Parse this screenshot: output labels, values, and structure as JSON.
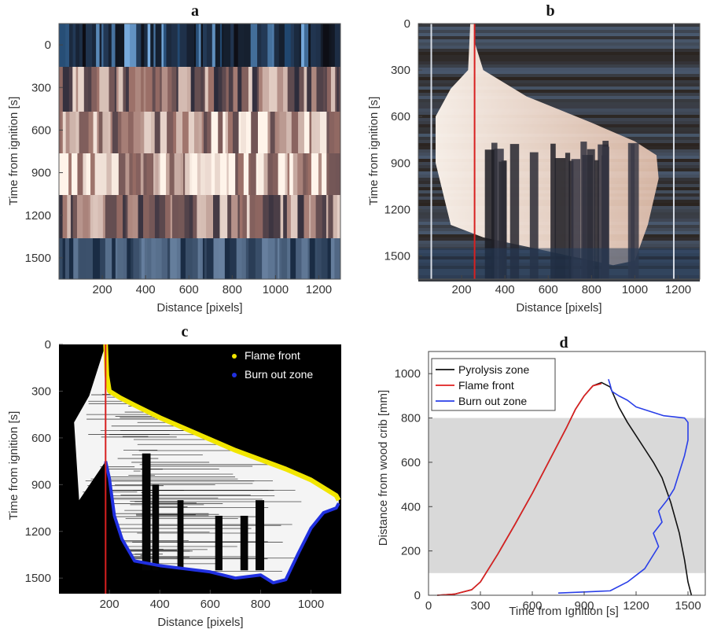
{
  "chart_data": [
    {
      "panel": "a",
      "type": "heatmap",
      "xlabel": "Distance [pixels]",
      "ylabel": "Time from ignition [s]",
      "xlim": [
        0,
        1300
      ],
      "ylim": [
        1650,
        -150
      ],
      "xticks": [
        200,
        400,
        600,
        800,
        1000,
        1200
      ],
      "yticks": [
        0,
        300,
        600,
        900,
        1200,
        1500
      ],
      "colors": {
        "low": "#3a6fa0",
        "mid": "#8a6a6a",
        "high": "#fff4ea"
      },
      "grid": false
    },
    {
      "panel": "b",
      "type": "heatmap",
      "xlabel": "Distance [pixels]",
      "ylabel": "Time from ignition [s]",
      "xlim": [
        0,
        1300
      ],
      "ylim": [
        1650,
        0
      ],
      "xticks": [
        200,
        400,
        600,
        800,
        1000,
        1200
      ],
      "yticks": [
        0,
        300,
        600,
        900,
        1200,
        1500
      ],
      "marker_line_x": 260,
      "marker_color": "#d82020",
      "grid": false
    },
    {
      "panel": "c",
      "type": "heatmap",
      "xlabel": "Distance [pixels]",
      "ylabel": "Time from ignition [s]",
      "xlim": [
        0,
        1120
      ],
      "ylim": [
        1600,
        0
      ],
      "xticks": [
        "200",
        "400",
        "600",
        "800",
        "1000"
      ],
      "yticks": [
        0,
        300,
        600,
        900,
        1200,
        1500
      ],
      "marker_line_x": 185,
      "marker_color": "#d82020",
      "legend_position": "top-right",
      "series": [
        {
          "name": "Flame front",
          "color": "#f2e600",
          "x": [
            185,
            190,
            200,
            240,
            300,
            400,
            500,
            600,
            700,
            800,
            900,
            1000,
            1060,
            1100,
            1110
          ],
          "y": [
            0,
            200,
            300,
            340,
            390,
            470,
            540,
            610,
            680,
            740,
            800,
            870,
            930,
            970,
            1000
          ]
        },
        {
          "name": "Burn out zone",
          "color": "#2030e0",
          "x": [
            185,
            200,
            220,
            250,
            300,
            400,
            500,
            600,
            700,
            800,
            850,
            900,
            950,
            1000,
            1050,
            1100,
            1110
          ],
          "y": [
            750,
            860,
            1100,
            1250,
            1390,
            1420,
            1440,
            1460,
            1500,
            1480,
            1530,
            1510,
            1340,
            1180,
            1080,
            1050,
            1020
          ]
        }
      ]
    },
    {
      "panel": "d",
      "type": "line",
      "xlabel": "Time from Ignition [s]",
      "ylabel": "Distance from wood crib [mm]",
      "xlim": [
        0,
        1600
      ],
      "ylim": [
        0,
        1100
      ],
      "xticks": [
        0,
        300,
        600,
        900,
        1200,
        1500
      ],
      "yticks": [
        0,
        200,
        400,
        600,
        800,
        1000
      ],
      "shaded_band": {
        "y0": 100,
        "y1": 800,
        "color": "#d9d9d9"
      },
      "legend_position": "top-left",
      "grid": false,
      "series": [
        {
          "name": "Pyrolysis zone",
          "color": "#111111",
          "x": [
            50,
            150,
            250,
            300,
            400,
            500,
            600,
            700,
            800,
            850,
            900,
            950,
            1000,
            1050,
            1100,
            1150,
            1200,
            1250,
            1300,
            1350,
            1400,
            1450,
            1480,
            1500,
            1520
          ],
          "y": [
            0,
            5,
            25,
            60,
            185,
            320,
            460,
            610,
            760,
            840,
            900,
            945,
            960,
            940,
            850,
            780,
            720,
            660,
            600,
            530,
            420,
            280,
            160,
            60,
            0
          ]
        },
        {
          "name": "Flame front",
          "color": "#e02020",
          "x": [
            50,
            150,
            250,
            300,
            400,
            500,
            600,
            700,
            800,
            850,
            900,
            950,
            1000
          ],
          "y": [
            0,
            5,
            25,
            60,
            185,
            320,
            460,
            610,
            760,
            840,
            900,
            945,
            955
          ]
        },
        {
          "name": "Burn out zone",
          "color": "#2a3fe8",
          "x": [
            750,
            900,
            1050,
            1150,
            1250,
            1330,
            1300,
            1350,
            1330,
            1380,
            1420,
            1440,
            1460,
            1480,
            1500,
            1500,
            1480,
            1360,
            1200,
            1150,
            1100,
            1060,
            1050,
            1040
          ],
          "y": [
            10,
            15,
            20,
            60,
            120,
            220,
            280,
            330,
            380,
            430,
            480,
            530,
            580,
            630,
            700,
            780,
            800,
            810,
            850,
            880,
            900,
            920,
            950,
            975
          ]
        }
      ]
    }
  ]
}
